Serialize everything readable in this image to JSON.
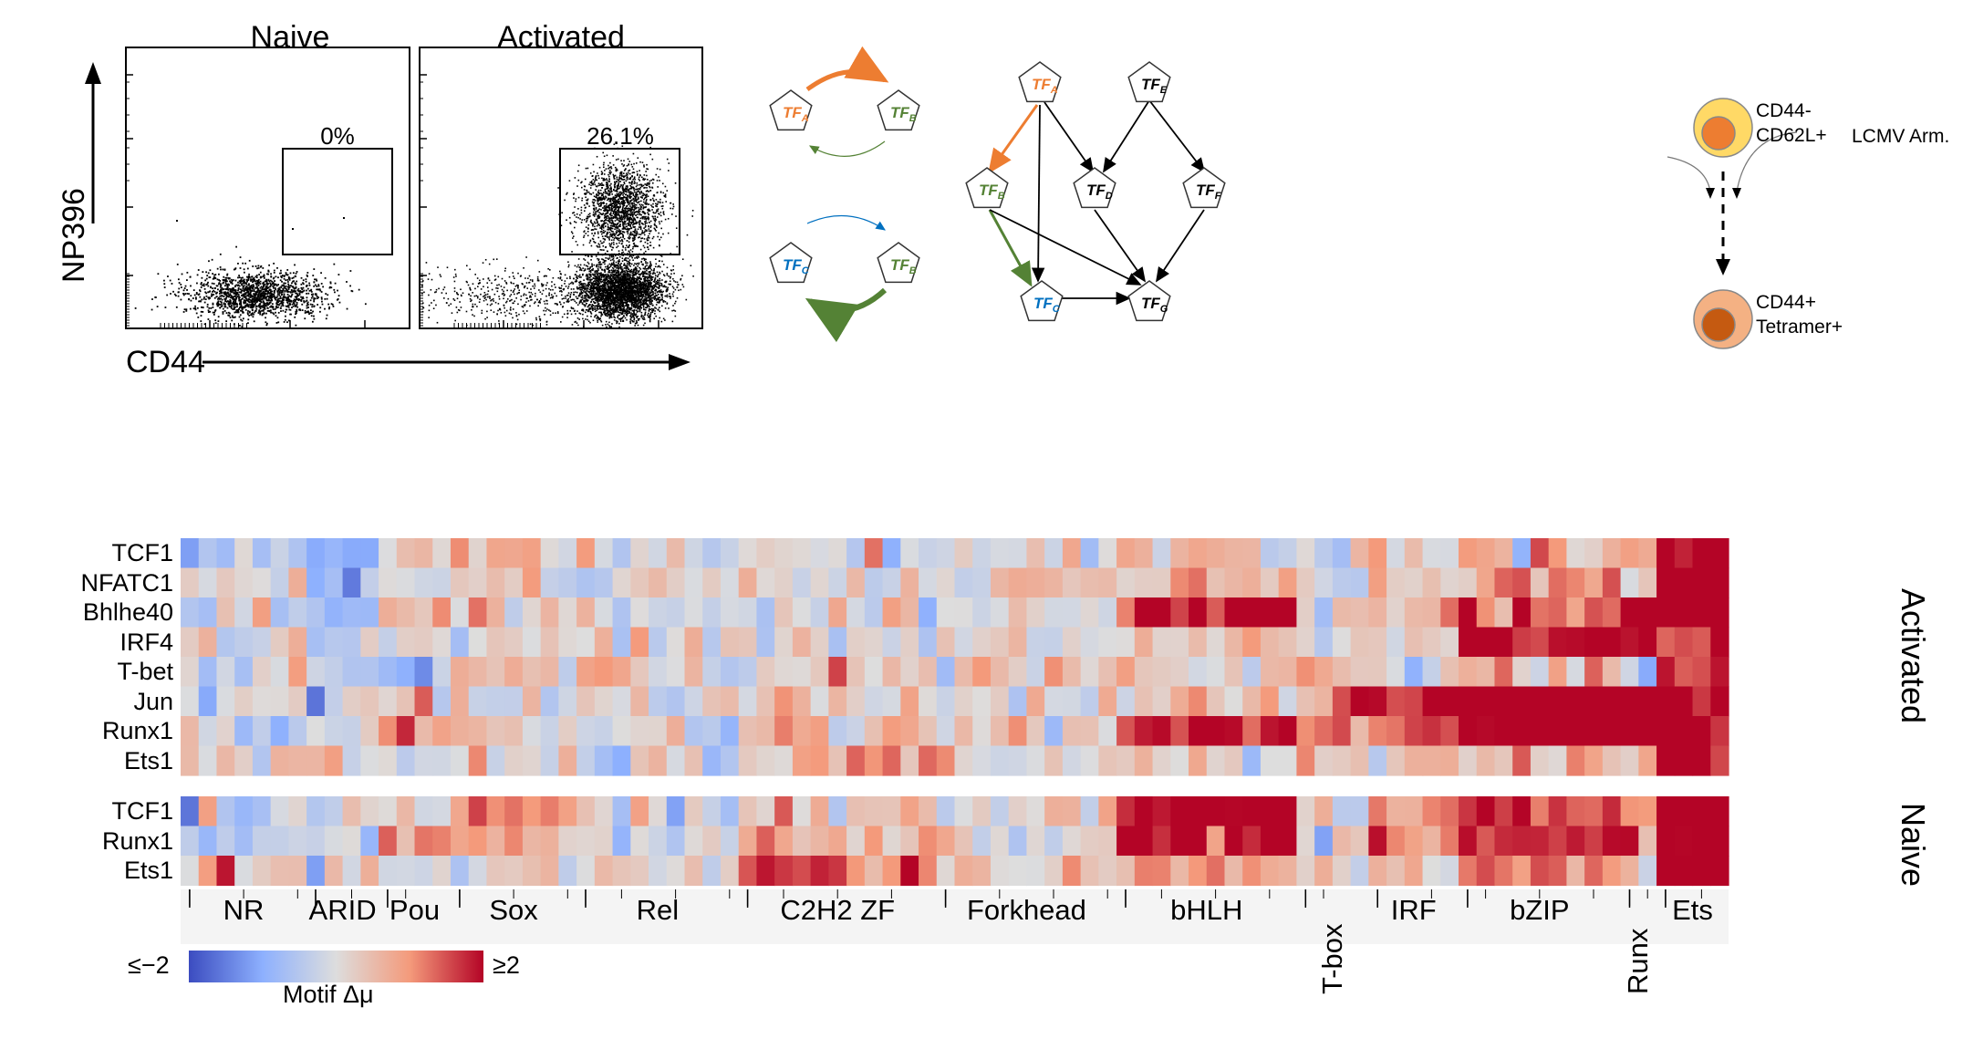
{
  "flow": {
    "panels": [
      {
        "title": "Naive",
        "gate_percent": "0%"
      },
      {
        "title": "Activated",
        "gate_percent": "26.1%"
      }
    ],
    "y_label": "NP396",
    "x_label": "CD44"
  },
  "network": {
    "pair_top": {
      "left": "TF",
      "left_sub": "A",
      "right": "TF",
      "right_sub": "B"
    },
    "pair_bottom": {
      "left": "TF",
      "left_sub": "C",
      "right": "TF",
      "right_sub": "B"
    },
    "nodes": [
      {
        "base": "TF",
        "sub": "A"
      },
      {
        "base": "TF",
        "sub": "E"
      },
      {
        "base": "TF",
        "sub": "B"
      },
      {
        "base": "TF",
        "sub": "D"
      },
      {
        "base": "TF",
        "sub": "F"
      },
      {
        "base": "TF",
        "sub": "C"
      },
      {
        "base": "TF",
        "sub": "G"
      }
    ],
    "colors": {
      "A": "#ED7D31",
      "B": "#548235",
      "C": "#0070C0",
      "black": "#000000"
    }
  },
  "cells": {
    "top_label_1": "CD44-",
    "top_label_2": "CD62L+",
    "stimulus": "LCMV Arm.",
    "bottom_label_1": "CD44+",
    "bottom_label_2": "Tetramer+",
    "colors": {
      "top_outer": "#FFD966",
      "top_inner": "#ED7D31",
      "bottom_outer": "#F4B183",
      "bottom_inner": "#C55A11"
    }
  },
  "heatmap": {
    "activated_rows": [
      "TCF1",
      "NFATC1",
      "Bhlhe40",
      "IRF4",
      "T-bet",
      "Jun",
      "Runx1",
      "Ets1"
    ],
    "naive_rows": [
      "TCF1",
      "Runx1",
      "Ets1"
    ],
    "activated_label": "Activated",
    "naive_label": "Naive",
    "families": [
      {
        "label": "NR",
        "vertical": false
      },
      {
        "label": "ARID",
        "vertical": false
      },
      {
        "label": "Pou",
        "vertical": false
      },
      {
        "label": "Sox",
        "vertical": false
      },
      {
        "label": "Rel",
        "vertical": false
      },
      {
        "label": "C2H2 ZF",
        "vertical": false
      },
      {
        "label": "Forkhead",
        "vertical": false
      },
      {
        "label": "bHLH",
        "vertical": false
      },
      {
        "label": "T-box",
        "vertical": true
      },
      {
        "label": "IRF",
        "vertical": false
      },
      {
        "label": "bZIP",
        "vertical": false
      },
      {
        "label": "Runx",
        "vertical": true
      },
      {
        "label": "Ets",
        "vertical": false
      }
    ],
    "colorbar": {
      "min_label": "≤−2",
      "max_label": "≥2",
      "title": "Motif Δμ",
      "low": "#3B4CC0",
      "mid": "#DDDDDD",
      "high": "#B40426"
    }
  }
}
